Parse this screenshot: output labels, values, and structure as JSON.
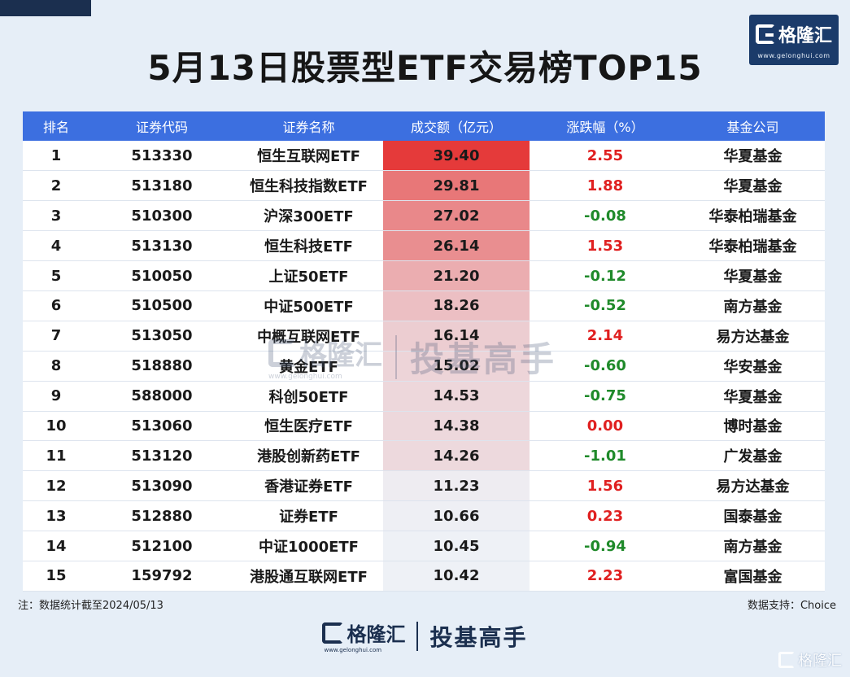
{
  "title": "5月13日股票型ETF交易榜TOP15",
  "brand": {
    "name": "格隆汇",
    "url": "www.gelonghui.com",
    "slogan": "投基高手"
  },
  "colors": {
    "header": "#3c6fe0",
    "up": "#e02020",
    "down": "#1f8a2a",
    "bar_max": "#e53a3a",
    "bar_min": "#eef1f6"
  },
  "columns": [
    "排名",
    "证券代码",
    "证券名称",
    "成交额（亿元）",
    "涨跌幅（%）",
    "基金公司"
  ],
  "chart_data": {
    "type": "table",
    "title": "5月13日股票型ETF交易榜TOP15",
    "rows": [
      {
        "rank": "1",
        "code": "513330",
        "name": "恒生互联网ETF",
        "amount": "39.40",
        "change": "2.55",
        "company": "华夏基金"
      },
      {
        "rank": "2",
        "code": "513180",
        "name": "恒生科技指数ETF",
        "amount": "29.81",
        "change": "1.88",
        "company": "华夏基金"
      },
      {
        "rank": "3",
        "code": "510300",
        "name": "沪深300ETF",
        "amount": "27.02",
        "change": "-0.08",
        "company": "华泰柏瑞基金"
      },
      {
        "rank": "4",
        "code": "513130",
        "name": "恒生科技ETF",
        "amount": "26.14",
        "change": "1.53",
        "company": "华泰柏瑞基金"
      },
      {
        "rank": "5",
        "code": "510050",
        "name": "上证50ETF",
        "amount": "21.20",
        "change": "-0.12",
        "company": "华夏基金"
      },
      {
        "rank": "6",
        "code": "510500",
        "name": "中证500ETF",
        "amount": "18.26",
        "change": "-0.52",
        "company": "南方基金"
      },
      {
        "rank": "7",
        "code": "513050",
        "name": "中概互联网ETF",
        "amount": "16.14",
        "change": "2.14",
        "company": "易方达基金"
      },
      {
        "rank": "8",
        "code": "518880",
        "name": "黄金ETF",
        "amount": "15.02",
        "change": "-0.60",
        "company": "华安基金"
      },
      {
        "rank": "9",
        "code": "588000",
        "name": "科创50ETF",
        "amount": "14.53",
        "change": "-0.75",
        "company": "华夏基金"
      },
      {
        "rank": "10",
        "code": "513060",
        "name": "恒生医疗ETF",
        "amount": "14.38",
        "change": "0.00",
        "company": "博时基金"
      },
      {
        "rank": "11",
        "code": "513120",
        "name": "港股创新药ETF",
        "amount": "14.26",
        "change": "-1.01",
        "company": "广发基金"
      },
      {
        "rank": "12",
        "code": "513090",
        "name": "香港证券ETF",
        "amount": "11.23",
        "change": "1.56",
        "company": "易方达基金"
      },
      {
        "rank": "13",
        "code": "512880",
        "name": "证券ETF",
        "amount": "10.66",
        "change": "0.23",
        "company": "国泰基金"
      },
      {
        "rank": "14",
        "code": "512100",
        "name": "中证1000ETF",
        "amount": "10.45",
        "change": "-0.94",
        "company": "南方基金"
      },
      {
        "rank": "15",
        "code": "159792",
        "name": "港股通互联网ETF",
        "amount": "10.42",
        "change": "2.23",
        "company": "富国基金"
      }
    ]
  },
  "note": "注：数据统计截至2024/05/13",
  "source": "数据支持：Choice"
}
